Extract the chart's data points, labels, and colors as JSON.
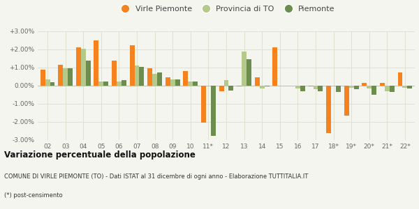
{
  "years": [
    "02",
    "03",
    "04",
    "05",
    "06",
    "07",
    "08",
    "09",
    "10",
    "11*",
    "12",
    "13",
    "14",
    "15",
    "16",
    "17",
    "18*",
    "19*",
    "20*",
    "21*",
    "22*"
  ],
  "virle": [
    0.9,
    1.15,
    2.1,
    2.5,
    1.4,
    2.25,
    0.95,
    0.45,
    0.8,
    -2.05,
    -0.3,
    -0.05,
    0.45,
    2.1,
    0.0,
    -0.05,
    -2.6,
    -1.65,
    0.15,
    0.15,
    0.75
  ],
  "provincia": [
    0.35,
    0.95,
    2.05,
    0.25,
    0.25,
    1.1,
    0.65,
    0.35,
    0.25,
    -0.05,
    0.3,
    1.9,
    -0.15,
    0.0,
    -0.15,
    -0.2,
    -0.05,
    -0.1,
    -0.15,
    -0.3,
    -0.1
  ],
  "piemonte": [
    0.2,
    0.95,
    1.4,
    0.25,
    0.3,
    1.05,
    0.75,
    0.35,
    0.25,
    -2.75,
    -0.25,
    1.45,
    -0.05,
    0.0,
    -0.3,
    -0.3,
    -0.35,
    -0.2,
    -0.5,
    -0.35,
    -0.15
  ],
  "color_virle": "#f5821e",
  "color_provincia": "#b5c98a",
  "color_piemonte": "#6b8e4e",
  "bg_color": "#f5f5f0",
  "grid_color": "#dcdccc",
  "ylim": [
    -3.0,
    3.0
  ],
  "yticks": [
    -3.0,
    -2.0,
    -1.0,
    0.0,
    1.0,
    2.0,
    3.0
  ],
  "title": "Variazione percentuale della popolazione",
  "subtitle": "COMUNE DI VIRLE PIEMONTE (TO) - Dati ISTAT al 31 dicembre di ogni anno - Elaborazione TUTTITALIA.IT",
  "footnote": "(*) post-censimento",
  "legend_labels": [
    "Virle Piemonte",
    "Provincia di TO",
    "Piemonte"
  ]
}
